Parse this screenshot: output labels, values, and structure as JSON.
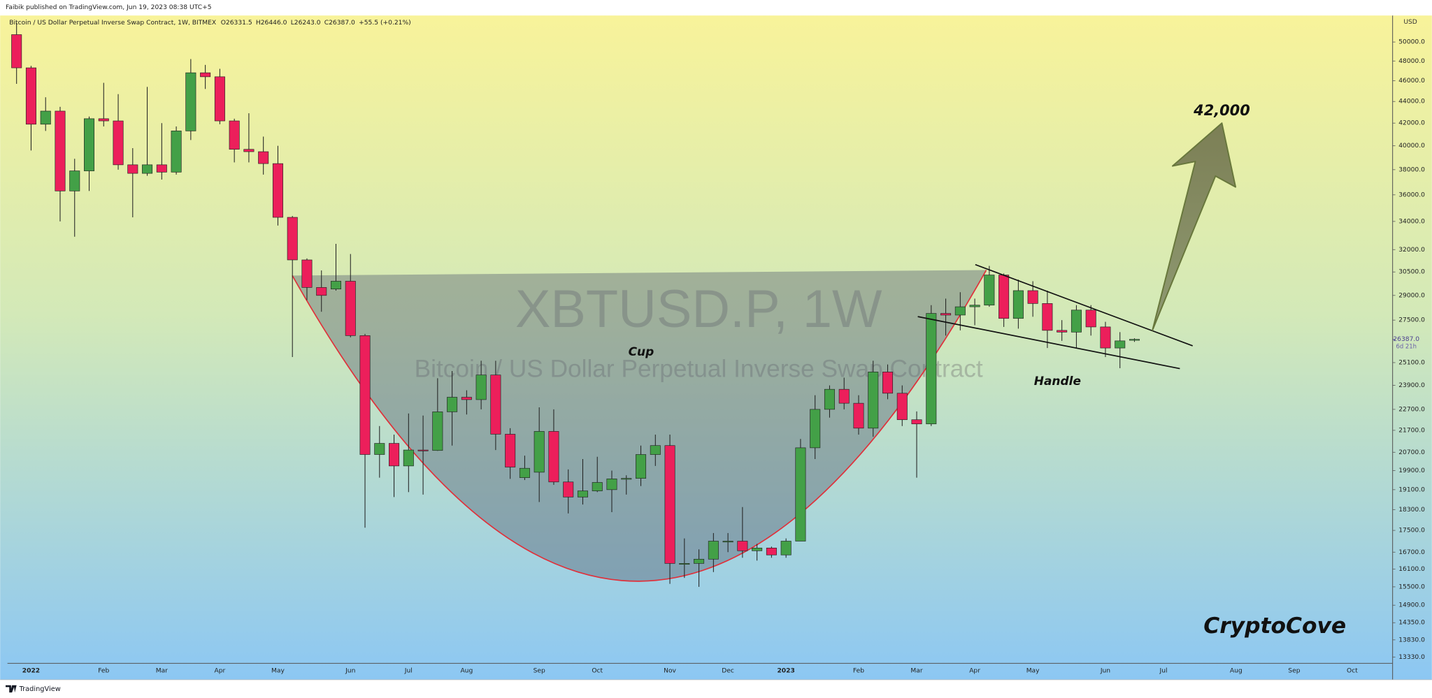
{
  "publisher_line": "Faibik published on TradingView.com, Jun 19, 2023 08:38 UTC+5",
  "brand": "TradingView",
  "chart_data": {
    "type": "candlestick",
    "title": "Bitcoin / US Dollar Perpetual Inverse Swap Contract, 1W, BITMEX",
    "ohlc_legend": [
      "O26331.5",
      "H26446.0",
      "L26243.0",
      "C26387.0",
      "+55.5 (+0.21%)"
    ],
    "watermark": "XBTUSD.P, 1W",
    "watermark_subtitle": "Bitcoin / US Dollar Perpetual Inverse Swap Contract",
    "currency": "USD",
    "cup_label": "Cup",
    "handle_label": "Handle",
    "target": {
      "value": 42000,
      "label": "42,000"
    },
    "signature": "CryptoCove",
    "up_color": "#43a047",
    "down_color": "#ec1f5b",
    "wick_color": "#222222",
    "log_scale": true,
    "ylim": [
      13150,
      52930
    ],
    "yticks": [
      {
        "value": 50000,
        "label": "50000.0"
      },
      {
        "value": 48000,
        "label": "48000.0"
      },
      {
        "value": 46000,
        "label": "46000.0"
      },
      {
        "value": 44000,
        "label": "44000.0"
      },
      {
        "value": 42000,
        "label": "42000.0"
      },
      {
        "value": 40000,
        "label": "40000.0"
      },
      {
        "value": 38000,
        "label": "38000.0"
      },
      {
        "value": 36000,
        "label": "36000.0"
      },
      {
        "value": 34000,
        "label": "34000.0"
      },
      {
        "value": 32000,
        "label": "32000.0"
      },
      {
        "value": 30500,
        "label": "30500.0"
      },
      {
        "value": 29000,
        "label": "29000.0"
      },
      {
        "value": 27500,
        "label": "27500.0"
      },
      {
        "value": 25100,
        "label": "25100.0"
      },
      {
        "value": 23900,
        "label": "23900.0"
      },
      {
        "value": 22700,
        "label": "22700.0"
      },
      {
        "value": 21700,
        "label": "21700.0"
      },
      {
        "value": 20700,
        "label": "20700.0"
      },
      {
        "value": 19900,
        "label": "19900.0"
      },
      {
        "value": 19100,
        "label": "19100.0"
      },
      {
        "value": 18300,
        "label": "18300.0"
      },
      {
        "value": 17500,
        "label": "17500.0"
      },
      {
        "value": 16700,
        "label": "16700.0"
      },
      {
        "value": 16100,
        "label": "16100.0"
      },
      {
        "value": 15500,
        "label": "15500.0"
      },
      {
        "value": 14900,
        "label": "14900.0"
      },
      {
        "value": 14350,
        "label": "14350.0"
      },
      {
        "value": 13830,
        "label": "13830.0"
      },
      {
        "value": 13330,
        "label": "13330.0"
      }
    ],
    "current_price": {
      "value": 26387,
      "label": "26387.0"
    },
    "countdown": "6d 21h",
    "categories": [
      null,
      "2022",
      null,
      null,
      null,
      null,
      "Feb",
      null,
      null,
      null,
      "Mar",
      null,
      null,
      null,
      "Apr",
      null,
      null,
      null,
      "May",
      null,
      null,
      null,
      null,
      "Jun",
      null,
      null,
      null,
      "Jul",
      null,
      null,
      null,
      "Aug",
      null,
      null,
      null,
      null,
      "Sep",
      null,
      null,
      null,
      "Oct",
      null,
      null,
      null,
      null,
      "Nov",
      null,
      null,
      null,
      "Dec",
      null,
      null,
      null,
      "2023",
      null,
      null,
      null,
      null,
      "Feb",
      null,
      null,
      null,
      "Mar",
      null,
      null,
      null,
      "Apr",
      null,
      null,
      null,
      "May",
      null,
      null,
      null,
      null,
      "Jun",
      null,
      null,
      null,
      "Jul",
      null,
      null,
      null,
      null,
      "Aug",
      null,
      null,
      null,
      "Sep",
      null,
      null,
      null,
      "Oct",
      null,
      null
    ],
    "open": [
      50800,
      47300,
      41900,
      43100,
      36300,
      37900,
      42400,
      42200,
      38400,
      37700,
      38400,
      37800,
      41300,
      46800,
      46400,
      42200,
      39700,
      39500,
      38500,
      34300,
      31300,
      29500,
      29400,
      29900,
      26600,
      20600,
      21100,
      20100,
      20800,
      20780,
      22580,
      23300,
      23180,
      24440,
      21520,
      19600,
      19830,
      21650,
      19420,
      18800,
      19050,
      19100,
      19550,
      19570,
      20600,
      21000,
      16300,
      16300,
      16450,
      17100,
      17100,
      16750,
      16850,
      16600,
      17100,
      20900,
      22700,
      23700,
      23000,
      21800,
      24600,
      23500,
      22200,
      22000,
      27900,
      27800,
      28300,
      28400,
      30300,
      27600,
      29300,
      28500,
      26900,
      26800,
      28100,
      27100,
      25900,
      26331.5,
      null,
      null,
      null,
      null,
      null,
      null,
      null,
      null,
      null,
      null,
      null,
      null,
      null,
      null,
      null,
      null,
      null
    ],
    "high": [
      52100,
      47500,
      44400,
      43500,
      38900,
      42600,
      45800,
      44700,
      39800,
      45400,
      42000,
      41700,
      48200,
      47600,
      47200,
      42400,
      42900,
      40800,
      40000,
      34400,
      31400,
      30600,
      32400,
      31700,
      26700,
      21900,
      21500,
      22500,
      22400,
      24270,
      24650,
      23650,
      25200,
      25200,
      21800,
      20550,
      22800,
      22700,
      19950,
      20400,
      20500,
      19900,
      19700,
      21000,
      21500,
      21500,
      17200,
      16800,
      17400,
      17400,
      18400,
      17000,
      16900,
      17200,
      21300,
      23400,
      23900,
      24300,
      23400,
      25200,
      25000,
      23900,
      22600,
      28400,
      28800,
      29200,
      28800,
      30900,
      30400,
      30000,
      29900,
      29300,
      27500,
      28400,
      28400,
      27400,
      26800,
      26446,
      null,
      null,
      null,
      null,
      null,
      null,
      null,
      null,
      null,
      null,
      null,
      null,
      null,
      null,
      null,
      null,
      null
    ],
    "low": [
      45700,
      39600,
      41300,
      34000,
      32900,
      36300,
      41700,
      38000,
      34300,
      37500,
      37200,
      37600,
      40500,
      45200,
      41900,
      38600,
      38600,
      37600,
      33700,
      25400,
      28700,
      28000,
      29300,
      26500,
      17600,
      19600,
      18800,
      19000,
      18900,
      20760,
      21000,
      22450,
      22700,
      20800,
      19550,
      19500,
      18600,
      19300,
      18150,
      18500,
      19000,
      18200,
      18900,
      19250,
      20100,
      15600,
      15800,
      15500,
      16000,
      16700,
      16500,
      16400,
      16500,
      16500,
      17100,
      20400,
      22300,
      22700,
      21500,
      21400,
      23200,
      21900,
      19600,
      21900,
      26600,
      26900,
      27200,
      28300,
      27100,
      27000,
      27700,
      25900,
      26300,
      25900,
      26600,
      25400,
      24800,
      26243,
      null,
      null,
      null,
      null,
      null,
      null,
      null,
      null,
      null,
      null,
      null,
      null,
      null,
      null,
      null,
      null,
      null
    ],
    "close": [
      47300,
      41900,
      43100,
      36300,
      37900,
      42400,
      42200,
      38400,
      37700,
      38400,
      37800,
      41300,
      46800,
      46400,
      42200,
      39700,
      39500,
      38500,
      34300,
      31300,
      29500,
      29000,
      29900,
      26600,
      20600,
      21100,
      20100,
      20800,
      20780,
      22580,
      23300,
      23180,
      24440,
      21520,
      20050,
      20000,
      21650,
      19420,
      18800,
      19050,
      19400,
      19550,
      19570,
      20600,
      21000,
      16300,
      16300,
      16450,
      17100,
      17100,
      16750,
      16850,
      16600,
      17100,
      20900,
      22700,
      23700,
      23000,
      21800,
      24600,
      23500,
      22200,
      22000,
      27900,
      27800,
      28300,
      28400,
      30300,
      27600,
      29300,
      28500,
      26900,
      26800,
      28100,
      27100,
      25900,
      26300,
      26387,
      null,
      null,
      null,
      null,
      null,
      null,
      null,
      null,
      null,
      null,
      null,
      null,
      null,
      null,
      null,
      null,
      null
    ]
  }
}
